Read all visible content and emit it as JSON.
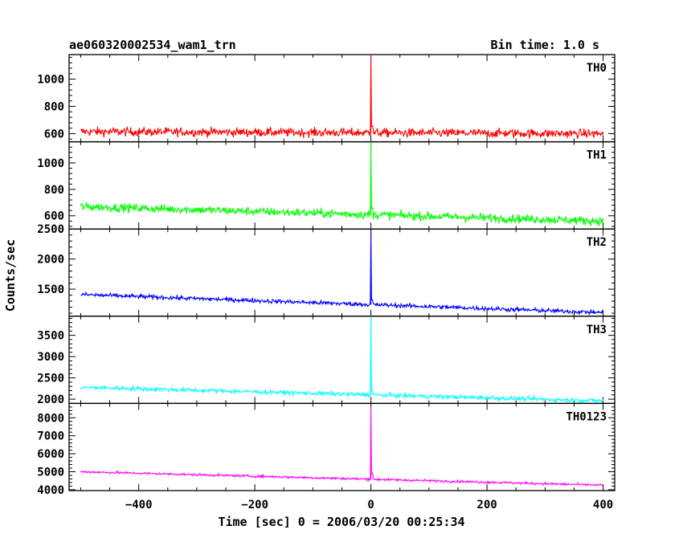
{
  "chart_data": {
    "type": "line",
    "title": "ae060320002534_wam1_trn",
    "subtitle": "Bin time: 1.0 s",
    "xlabel": "Time [sec] 0 = 2006/03/20 00:25:34",
    "ylabel": "Counts/sec",
    "xlim": [
      -520,
      420
    ],
    "x_ticks": [
      -400,
      -200,
      0,
      200,
      400
    ],
    "x_range": [
      -500,
      400
    ],
    "burst_x": 0,
    "panels": [
      {
        "name": "TH0",
        "color": "#ff0000",
        "ylim": [
          540,
          1180
        ],
        "y_ticks": [
          600,
          800,
          1000
        ],
        "start": 615,
        "end": 600,
        "noise": 32,
        "peak": 1180,
        "post_peak": 660
      },
      {
        "name": "TH1",
        "color": "#00ff00",
        "ylim": [
          500,
          1160
        ],
        "y_ticks": [
          600,
          800,
          1000
        ],
        "start": 670,
        "end": 560,
        "noise": 32,
        "peak": 1160,
        "post_peak": 650
      },
      {
        "name": "TH2",
        "color": "#0000ff",
        "ylim": [
          1050,
          2500
        ],
        "y_ticks": [
          1500,
          2000,
          2500
        ],
        "start": 1410,
        "end": 1110,
        "noise": 35,
        "peak": 2500,
        "post_peak": 1320
      },
      {
        "name": "TH3",
        "color": "#00ffff",
        "ylim": [
          1900,
          3950
        ],
        "y_ticks": [
          2000,
          2500,
          3000,
          3500
        ],
        "start": 2280,
        "end": 1960,
        "noise": 50,
        "peak": 3950,
        "post_peak": 2250
      },
      {
        "name": "TH0123",
        "color": "#ff00ff",
        "ylim": [
          3950,
          8800
        ],
        "y_ticks": [
          4000,
          5000,
          6000,
          7000,
          8000
        ],
        "start": 5000,
        "end": 4250,
        "noise": 65,
        "peak": 8600,
        "post_peak": 4900
      }
    ]
  }
}
